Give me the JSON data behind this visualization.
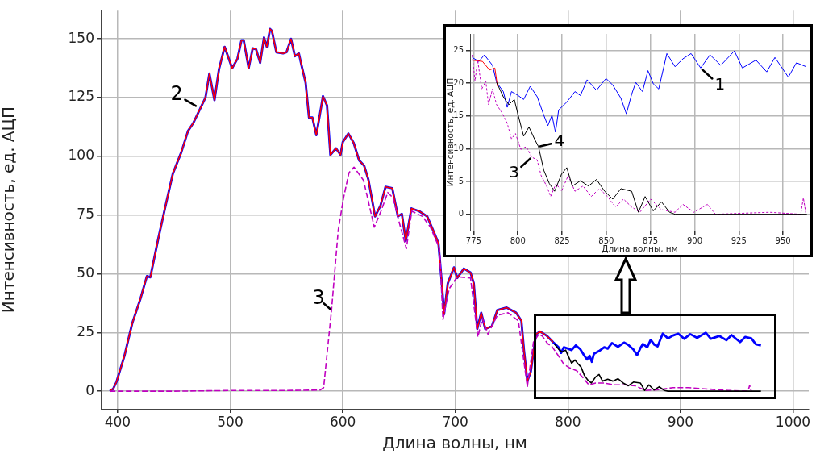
{
  "chart_data": [
    {
      "type": "line",
      "xlabel": "Длина волны, нм",
      "ylabel": "Интенсивность, ед. АЦП",
      "xlim": [
        385,
        1014
      ],
      "ylim": [
        -7.5,
        162
      ],
      "xticks": [
        400,
        500,
        600,
        700,
        800,
        900,
        1000
      ],
      "yticks": [
        0,
        25,
        50,
        75,
        100,
        125,
        150
      ],
      "grid": true,
      "marker": "none",
      "series": [
        {
          "color": "#0000ff",
          "x": [
            393,
            396,
            399,
            406,
            413,
            420,
            426,
            429,
            436,
            442,
            449,
            456.5,
            462.5,
            467,
            473,
            478,
            481.5,
            486,
            490,
            495,
            501.7,
            506.4,
            510,
            512,
            516.4,
            520,
            523,
            526.6,
            530,
            532.5,
            535.4,
            537,
            541,
            547,
            550,
            554,
            557.5,
            561,
            563.4,
            567,
            570,
            573,
            576.5,
            579.6,
            582.4,
            586,
            589,
            594,
            598,
            600,
            605,
            609.7,
            614.5,
            619,
            622.8,
            628.7,
            633.5,
            638,
            644,
            649,
            652.5,
            656,
            661,
            668,
            675,
            682,
            685,
            688,
            690,
            693.3,
            698.8,
            701.7,
            707.6,
            713.5,
            716.4,
            719.5,
            723,
            726.6,
            732.5,
            737.3,
            745.6,
            754,
            758.7,
            761,
            764,
            767,
            771.7,
            775.3,
            781,
            787,
            791.8,
            794,
            796.4,
            800.2,
            803.3,
            807,
            811,
            814.7,
            817,
            819.3,
            821.3,
            823.1,
            827.7,
            832.3,
            835.4,
            839.2,
            844.5,
            849.9,
            853.7,
            858.3,
            861.4,
            864.4,
            866.7,
            870.5,
            873.6,
            876.6,
            879.7,
            884.3,
            888.9,
            893.4,
            898,
            903.4,
            908.7,
            914.8,
            922.5,
            927,
            934.7,
            940.8,
            945.4,
            953,
            957.6,
            963,
            967,
            971.5
          ],
          "values": [
            0,
            1,
            4,
            15,
            29,
            39,
            49,
            48.5,
            64.8,
            77.8,
            92.6,
            101.7,
            110.8,
            114,
            120,
            125,
            135.2,
            123.9,
            137,
            146.6,
            137.5,
            141.5,
            149.4,
            149.4,
            137.5,
            146,
            145.5,
            139.8,
            150.6,
            146.6,
            154.2,
            153.4,
            144.3,
            143.8,
            144.3,
            150,
            142.6,
            143.8,
            138.6,
            131.3,
            116.5,
            116.5,
            109,
            117.6,
            125.6,
            121.6,
            100.6,
            103.4,
            100.6,
            106,
            109.7,
            105.7,
            98.3,
            96,
            90,
            74.4,
            79,
            87,
            86.4,
            74.4,
            75.5,
            64,
            77.8,
            76.6,
            74.4,
            66.5,
            63,
            45.9,
            32.8,
            45.9,
            52.7,
            48.2,
            52.2,
            50.5,
            45.9,
            26.5,
            33.4,
            26.5,
            27.7,
            34.5,
            35.6,
            33.4,
            30,
            17.4,
            4.3,
            8.3,
            24.3,
            25.4,
            23.7,
            20.8,
            18.7,
            16.3,
            18.7,
            18.1,
            17.5,
            19.5,
            17.9,
            15.1,
            13.5,
            15.1,
            12.5,
            15.9,
            17.1,
            18.7,
            18.1,
            20.5,
            18.9,
            20.7,
            19.7,
            17.7,
            15.3,
            18.3,
            20.1,
            18.7,
            21.9,
            19.9,
            19.1,
            24.5,
            22.5,
            23.7,
            24.5,
            22.3,
            24.3,
            22.7,
            24.9,
            22.3,
            23.5,
            21.7,
            23.9,
            20.9,
            23.1,
            22.5,
            20,
            19.5
          ]
        },
        {
          "color": "#ff0000",
          "x": [
            393,
            396,
            399,
            406,
            413,
            420,
            426,
            429,
            436,
            442,
            449,
            456.5,
            462.5,
            467,
            473,
            478,
            481.5,
            486,
            490,
            495,
            501.7,
            506.4,
            510,
            512,
            516.4,
            520,
            523,
            526.6,
            530,
            532.5,
            535.4,
            537,
            541,
            547,
            550,
            554,
            557.5,
            561,
            563.4,
            567,
            570,
            573,
            576.5,
            579.6,
            582.4,
            586,
            589,
            594,
            598,
            600,
            605,
            609.7,
            614.5,
            619,
            622.8,
            628.7,
            633.5,
            638,
            644,
            649,
            652.5,
            656,
            661,
            668,
            675,
            682,
            685,
            688,
            690,
            693.3,
            698.8,
            701.7,
            707.6,
            713.5,
            716.4,
            719.5,
            723,
            726.6,
            732.5,
            737.3,
            745.6,
            754,
            758.7,
            761,
            764,
            767,
            771.7,
            775.3,
            781,
            787
          ],
          "values": [
            0,
            1,
            4,
            15,
            29,
            39,
            49,
            48.5,
            64.8,
            77.8,
            92.6,
            101.7,
            110.8,
            114,
            120,
            125,
            135.2,
            123.9,
            137,
            146.6,
            137.5,
            141.5,
            149.4,
            149.4,
            137.5,
            146,
            145.5,
            139.8,
            150.6,
            146.6,
            154.2,
            153.4,
            144.3,
            143.8,
            144.3,
            150,
            142.6,
            143.8,
            138.6,
            131.3,
            116.5,
            116.5,
            109,
            117.6,
            125.6,
            121.6,
            100.6,
            103.4,
            100.6,
            106,
            109.7,
            105.7,
            98.3,
            96,
            90,
            74.4,
            79,
            87,
            86.4,
            74.4,
            75.5,
            64,
            77.8,
            76.6,
            74.4,
            66.5,
            63,
            45.9,
            32.8,
            45.9,
            52.7,
            48.2,
            52.2,
            50.5,
            45.9,
            26.5,
            33.4,
            26.5,
            27.7,
            34.5,
            35.6,
            33.4,
            30,
            17.4,
            4.3,
            8.3,
            24.3,
            25.4,
            23.7,
            20.8
          ]
        },
        {
          "color": "#c000c0",
          "line_style": "dashed",
          "x": [
            393,
            450,
            500,
            550,
            580,
            583,
            590,
            596,
            600.7,
            605.5,
            610,
            618.5,
            628,
            634,
            640,
            644.7,
            649.4,
            656.5,
            661.3,
            670.8,
            677.9,
            686,
            689,
            694.5,
            701.7,
            713.5,
            720,
            724,
            729,
            737.3,
            746.8,
            756,
            764,
            769.4,
            774.2,
            777.3,
            781.9,
            785.7,
            791,
            796.4,
            801.7,
            807.9,
            813.2,
            818.6,
            824.7,
            832.3,
            841.5,
            850.7,
            859.8,
            869,
            881.2,
            893.4,
            907.2,
            942.4,
            960,
            961.5,
            963
          ],
          "values": [
            0,
            0,
            0.3,
            0.3,
            0.5,
            1.5,
            34.5,
            68.7,
            82.3,
            93,
            95.4,
            89.7,
            69.8,
            76.7,
            84.6,
            82.3,
            73.2,
            60.7,
            76.7,
            74.4,
            69.8,
            60.7,
            30.5,
            43.6,
            48.7,
            48.2,
            23.1,
            31,
            24.3,
            32.3,
            33.4,
            30,
            2,
            20.8,
            24.3,
            23.5,
            20.3,
            19.1,
            15.5,
            11.5,
            9.9,
            8.7,
            5.9,
            2.7,
            3.5,
            3.5,
            2.7,
            2.7,
            2.3,
            0.3,
            0.7,
            1.5,
            1.5,
            0.3,
            0,
            2.5,
            0
          ]
        },
        {
          "color": "#000000",
          "x": [
            788,
            791.8,
            794.9,
            798,
            800.2,
            803.3,
            806.3,
            809.4,
            811.7,
            814.7,
            817.8,
            820.8,
            824.7,
            827.7,
            830.8,
            835.4,
            840,
            844.5,
            849.1,
            853.7,
            858.3,
            864.4,
            868.2,
            872,
            876.6,
            881.2,
            885.8,
            888.9,
            971.5
          ],
          "values": [
            20.1,
            17.9,
            16.7,
            17.5,
            15.1,
            11.9,
            13.3,
            11.5,
            10.3,
            6.7,
            4.7,
            3.5,
            6.1,
            7.1,
            4.3,
            5.1,
            4.3,
            5.3,
            3.5,
            2.3,
            3.9,
            3.5,
            0.3,
            2.7,
            0.5,
            1.9,
            0.3,
            0,
            0
          ]
        }
      ],
      "annotations": [
        {
          "text": "2",
          "x": 471,
          "y": 121
        },
        {
          "text": "3",
          "x": 590,
          "y": 34.5
        }
      ]
    },
    {
      "type": "line",
      "xlabel": "Длина волны, нм",
      "ylabel": "Интенсивность, ед. АЦП",
      "xlim": [
        773,
        965
      ],
      "ylim": [
        -2.5,
        27.5
      ],
      "xticks": [
        775,
        800,
        825,
        850,
        875,
        900,
        925,
        950
      ],
      "yticks": [
        0,
        5,
        10,
        15,
        20,
        25
      ],
      "grid": true,
      "marker": "none",
      "series": [
        {
          "color": "#0000ff",
          "x": [
            774.2,
            778,
            781.1,
            785.7,
            788,
            791.8,
            794,
            796.4,
            800.2,
            803.3,
            807,
            811,
            814.7,
            817,
            819.3,
            821.3,
            823.1,
            827.7,
            832.3,
            835.4,
            839.2,
            844.5,
            849.9,
            853.7,
            858.3,
            861.4,
            864.4,
            866.7,
            870.5,
            873.6,
            876.6,
            879.7,
            884.3,
            888.9,
            893.4,
            898,
            903.4,
            908.7,
            914.8,
            922.5,
            927,
            934.7,
            940.8,
            945.4,
            953,
            957.6,
            963
          ],
          "values": [
            23.9,
            23.3,
            24.3,
            22.7,
            20.1,
            18.7,
            16.3,
            18.7,
            18.1,
            17.5,
            19.5,
            17.9,
            15.1,
            13.5,
            15.1,
            12.5,
            15.9,
            17.1,
            18.7,
            18.1,
            20.5,
            18.9,
            20.7,
            19.7,
            17.7,
            15.3,
            18.3,
            20.1,
            18.7,
            21.9,
            19.9,
            19.1,
            24.5,
            22.5,
            23.7,
            24.5,
            22.3,
            24.3,
            22.7,
            24.9,
            22.3,
            23.5,
            21.7,
            23.9,
            20.9,
            23.1,
            22.5
          ]
        },
        {
          "color": "#ff0000",
          "x": [
            774,
            780,
            784,
            787,
            788.5
          ],
          "values": [
            23.5,
            23.3,
            22,
            22.3,
            19.5
          ]
        },
        {
          "color": "#c000c0",
          "line_style": "dashed",
          "x": [
            774.2,
            775.8,
            777.3,
            779.6,
            781.9,
            783.4,
            785.7,
            788,
            791,
            794,
            796.4,
            798.7,
            801.7,
            804.8,
            807.9,
            810.9,
            813.2,
            816.3,
            818.6,
            821.6,
            824.7,
            828.5,
            832.3,
            836.9,
            841.5,
            846.1,
            850.7,
            855.2,
            859.8,
            864.4,
            869,
            875.1,
            881.2,
            888.9,
            893.4,
            899.6,
            907.2,
            911.8,
            942.4,
            960,
            961.5,
            963
          ],
          "values": [
            24.3,
            20.3,
            23.5,
            19.1,
            20.3,
            16.7,
            19.1,
            16.7,
            15.5,
            13.9,
            11.5,
            12.3,
            9.9,
            10.3,
            8.7,
            8.3,
            5.9,
            4.3,
            2.7,
            4.7,
            3.5,
            5.9,
            3.5,
            4.3,
            2.7,
            3.9,
            2.7,
            1.1,
            2.3,
            1.1,
            0.3,
            2.3,
            0.7,
            0.3,
            1.5,
            0.3,
            1.5,
            0,
            0.3,
            0,
            2.5,
            0
          ]
        },
        {
          "color": "#000000",
          "x": [
            788,
            791.8,
            794.9,
            798,
            800.2,
            803.3,
            806.3,
            809.4,
            811.7,
            814.7,
            817.8,
            820.8,
            824.7,
            827.7,
            830.8,
            835.4,
            840,
            844.5,
            849.1,
            853.7,
            858.3,
            864.4,
            868.2,
            872,
            876.6,
            881.2,
            885.8,
            888.9,
            963.5
          ],
          "values": [
            20.1,
            17.9,
            16.7,
            17.5,
            15.1,
            11.9,
            13.3,
            11.5,
            10.3,
            6.7,
            4.7,
            3.5,
            6.1,
            7.1,
            4.3,
            5.1,
            4.3,
            5.3,
            3.5,
            2.3,
            3.9,
            3.5,
            0.3,
            2.7,
            0.5,
            1.9,
            0.3,
            0,
            0
          ]
        }
      ],
      "annotations": [
        {
          "text": "1",
          "x": 903.4,
          "y": 22.3
        },
        {
          "text": "4",
          "x": 811.7,
          "y": 10.3
        },
        {
          "text": "3",
          "x": 807.9,
          "y": 8.7
        }
      ]
    }
  ]
}
